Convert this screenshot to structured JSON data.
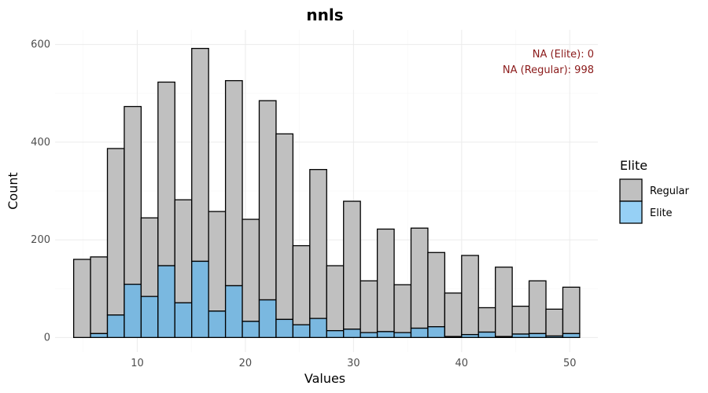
{
  "chart_data": {
    "type": "bar",
    "title": "nnls",
    "xlabel": "Values",
    "ylabel": "Count",
    "xlim": [
      2.4,
      52.6
    ],
    "ylim": [
      -30,
      630
    ],
    "x_ticks": [
      10,
      20,
      30,
      40,
      50
    ],
    "y_ticks": [
      0,
      200,
      400,
      600
    ],
    "bin_width": 1.56,
    "bin_centers": [
      4.9,
      6.46,
      8.02,
      9.58,
      11.14,
      12.7,
      14.26,
      15.82,
      17.38,
      18.94,
      20.5,
      22.06,
      23.62,
      25.18,
      26.74,
      28.3,
      29.86,
      31.42,
      32.98,
      34.54,
      36.1,
      37.66,
      39.22,
      40.78,
      42.34,
      43.9,
      45.46,
      47.02,
      48.58,
      50.14
    ],
    "series": [
      {
        "name": "Regular",
        "values": [
          160,
          157,
          341,
          364,
          161,
          376,
          211,
          436,
          204,
          420,
          209,
          408,
          380,
          162,
          305,
          133,
          262,
          106,
          210,
          98,
          205,
          152,
          89,
          162,
          50,
          142,
          57,
          108,
          55,
          95
        ]
      },
      {
        "name": "Elite",
        "values": [
          0,
          8,
          46,
          109,
          84,
          147,
          71,
          156,
          54,
          106,
          33,
          77,
          37,
          26,
          39,
          14,
          17,
          10,
          12,
          10,
          19,
          22,
          2,
          6,
          11,
          2,
          7,
          8,
          3,
          8
        ]
      }
    ],
    "stacked": true,
    "legend": {
      "title": "Elite",
      "position": "right",
      "entries": [
        "Regular",
        "Elite"
      ]
    },
    "annotations": [
      "NA (Elite): 0",
      "NA (Regular): 998"
    ],
    "colors": {
      "Regular": "#c0c0c0",
      "Elite": "#7ab8e0",
      "Elite_legend": "#96d0f5",
      "annotation": "#8b1a1a",
      "bar_outline": "#000000"
    },
    "grid": true
  }
}
